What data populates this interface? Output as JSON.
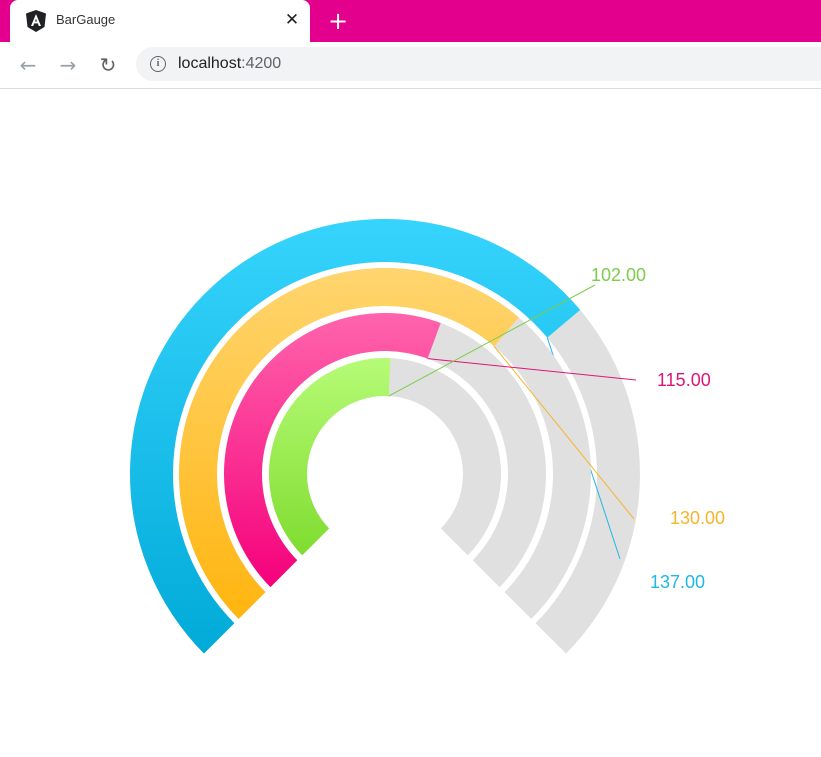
{
  "browser": {
    "tab_title": "BarGauge",
    "tab_close_icon": "close-icon",
    "new_tab_icon": "plus-icon",
    "back_icon": "arrow-left-icon",
    "forward_icon": "arrow-right-icon",
    "reload_icon": "reload-icon",
    "url_host": "localhost",
    "url_port": ":4200",
    "tabstrip_color": "#e3008c"
  },
  "chart_data": {
    "type": "bar-gauge",
    "scale": {
      "start_value": 0,
      "end_value": 200,
      "start_angle_deg": -45,
      "end_angle_deg": 225
    },
    "background_color": "#e0e0e0",
    "label_format": "fixed-2",
    "series": [
      {
        "name": "",
        "value": 137,
        "label": "137.00",
        "color": "#1fb8e6",
        "color_light": "#36d4fd",
        "color_dark": "#01aad8"
      },
      {
        "name": "",
        "value": 130,
        "label": "130.00",
        "color": "#f7b42c",
        "color_light": "#ffd56f",
        "color_dark": "#ffb50f"
      },
      {
        "name": "",
        "value": 115,
        "label": "115.00",
        "color": "#e0157a",
        "color_light": "#ff64ac",
        "color_dark": "#f5007b"
      },
      {
        "name": "",
        "value": 102,
        "label": "102.00",
        "color": "#7dcc4a",
        "color_light": "#b6fb77",
        "color_dark": "#7fdc2f"
      }
    ]
  }
}
